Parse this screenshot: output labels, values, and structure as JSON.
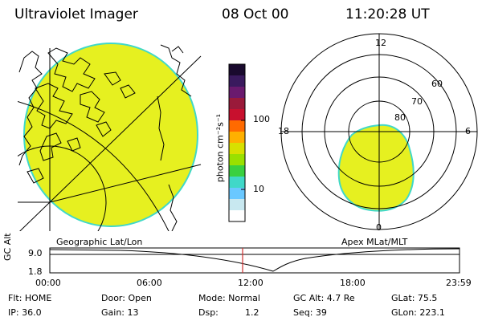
{
  "header": {
    "title": "Ultraviolet Imager",
    "date": "08 Oct 00",
    "time": "11:20:28 UT"
  },
  "colorbar": {
    "unit_label": "photon cm⁻²s⁻¹",
    "tick_labels": [
      "100",
      "10"
    ],
    "scale": "log",
    "colors": [
      "#1a0a2e",
      "#3a1a5e",
      "#6a1a6e",
      "#9a1a3a",
      "#c8102e",
      "#ff6a00",
      "#ffb000",
      "#d8e000",
      "#9ae000",
      "#3ad040",
      "#40d8c8",
      "#6ac8ff",
      "#c8e8f0",
      "#ffffff"
    ]
  },
  "left_panel": {
    "caption": "Geographic Lat/Lon",
    "fill_color": "#e6f020"
  },
  "right_panel": {
    "caption": "Apex MLat/MLT",
    "mlt_labels": {
      "top": "12",
      "right": "6",
      "bottom": "0",
      "left": "18"
    },
    "lat_labels": [
      "60",
      "70",
      "80"
    ],
    "fill_color": "#e6f020"
  },
  "timeline": {
    "y_axis_label": "GC Alt",
    "y_ticks": [
      "9.0",
      "1.8"
    ],
    "x_ticks": [
      "00:00",
      "06:00",
      "12:00",
      "18:00",
      "23:59"
    ],
    "marker_color": "#d03030"
  },
  "meta": {
    "flt": "Flt: HOME",
    "ip": "IP: 36.0",
    "door": "Door: Open",
    "gain": "Gain: 13",
    "mode": "Mode: Normal",
    "dsp_label": "Dsp:",
    "dsp_value": "1.2",
    "gcalt": "GC Alt: 4.7 Re",
    "seq": "Seq: 39",
    "glat": "GLat: 75.5",
    "glon": "GLon: 223.1"
  }
}
